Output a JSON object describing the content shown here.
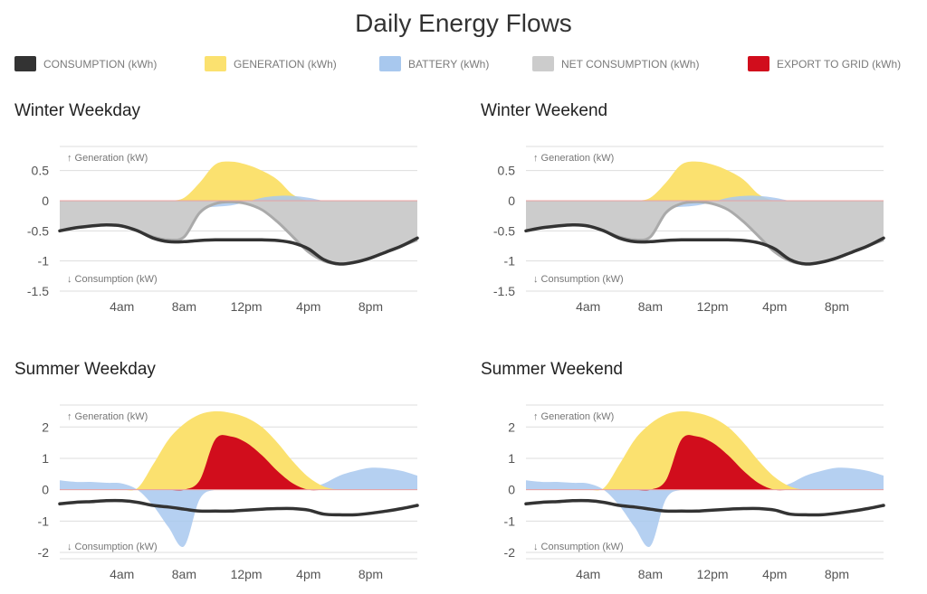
{
  "title": "Daily Energy Flows",
  "legend": [
    {
      "label": "CONSUMPTION (kWh)",
      "color": "#333333"
    },
    {
      "label": "GENERATION (kWh)",
      "color": "#fbe16f"
    },
    {
      "label": "BATTERY (kWh)",
      "color": "#a8c8ee"
    },
    {
      "label": "NET CONSUMPTION (kWh)",
      "color": "#cccccc"
    },
    {
      "label": "EXPORT TO GRID (kWh)",
      "color": "#d10d1c"
    }
  ],
  "colors": {
    "consumption": "#333333",
    "generation": "#fbe16f",
    "battery": "#a8c8ee",
    "net": "#cccccc",
    "export": "#d10d1c",
    "grid": "#dddddd",
    "zero": "#e9a1a1"
  },
  "chart_data": [
    {
      "title": "Winter Weekday",
      "type": "area",
      "gen_label": "↑ Generation (kW)",
      "cons_label": "↓ Consumption (kW)",
      "xticks": [
        "4am",
        "8am",
        "12pm",
        "4pm",
        "8pm"
      ],
      "yticks": [
        "0.5",
        "0",
        "-0.5",
        "-1",
        "-1.5"
      ],
      "ytick_values": [
        0.5,
        0,
        -0.5,
        -1,
        -1.5
      ],
      "ylim": [
        -1.5,
        0.9
      ],
      "xlim": [
        0,
        23
      ],
      "x": [
        0,
        1,
        2,
        3,
        4,
        5,
        6,
        7,
        8,
        9,
        10,
        11,
        12,
        13,
        14,
        15,
        16,
        17,
        18,
        19,
        20,
        21,
        22,
        23
      ],
      "series": [
        {
          "key": "generation",
          "kind": "area",
          "values": [
            0,
            0,
            0,
            0,
            0,
            0,
            0,
            0,
            0.05,
            0.3,
            0.6,
            0.65,
            0.6,
            0.5,
            0.35,
            0.1,
            0,
            0,
            0,
            0,
            0,
            0,
            0,
            0
          ]
        },
        {
          "key": "battery",
          "kind": "area",
          "values": [
            0,
            0,
            0,
            0,
            0,
            0,
            0,
            0,
            0,
            -0.1,
            -0.1,
            -0.08,
            -0.02,
            0.05,
            0.08,
            0.08,
            0.05,
            0,
            0,
            0,
            0,
            0,
            0,
            0
          ]
        },
        {
          "key": "net",
          "kind": "area",
          "values": [
            -0.5,
            -0.45,
            -0.42,
            -0.4,
            -0.42,
            -0.5,
            -0.6,
            -0.65,
            -0.6,
            -0.2,
            -0.05,
            -0.02,
            -0.05,
            -0.15,
            -0.35,
            -0.6,
            -0.85,
            -1.0,
            -1.05,
            -1.02,
            -0.95,
            -0.85,
            -0.75,
            -0.65
          ]
        },
        {
          "key": "consumption",
          "kind": "line",
          "values": [
            -0.5,
            -0.45,
            -0.42,
            -0.4,
            -0.42,
            -0.5,
            -0.62,
            -0.68,
            -0.68,
            -0.66,
            -0.65,
            -0.65,
            -0.65,
            -0.65,
            -0.66,
            -0.7,
            -0.8,
            -0.98,
            -1.05,
            -1.02,
            -0.95,
            -0.85,
            -0.75,
            -0.62
          ]
        }
      ]
    },
    {
      "title": "Winter Weekend",
      "type": "area",
      "gen_label": "↑ Generation (kW)",
      "cons_label": "↓ Consumption (kW)",
      "xticks": [
        "4am",
        "8am",
        "12pm",
        "4pm",
        "8pm"
      ],
      "yticks": [
        "0.5",
        "0",
        "-0.5",
        "-1",
        "-1.5"
      ],
      "ytick_values": [
        0.5,
        0,
        -0.5,
        -1,
        -1.5
      ],
      "ylim": [
        -1.5,
        0.9
      ],
      "xlim": [
        0,
        23
      ],
      "x": [
        0,
        1,
        2,
        3,
        4,
        5,
        6,
        7,
        8,
        9,
        10,
        11,
        12,
        13,
        14,
        15,
        16,
        17,
        18,
        19,
        20,
        21,
        22,
        23
      ],
      "series": [
        {
          "key": "generation",
          "kind": "area",
          "values": [
            0,
            0,
            0,
            0,
            0,
            0,
            0,
            0,
            0.05,
            0.3,
            0.6,
            0.65,
            0.6,
            0.5,
            0.35,
            0.1,
            0,
            0,
            0,
            0,
            0,
            0,
            0,
            0
          ]
        },
        {
          "key": "battery",
          "kind": "area",
          "values": [
            0,
            0,
            0,
            0,
            0,
            0,
            0,
            0,
            0,
            -0.1,
            -0.1,
            -0.08,
            -0.02,
            0.05,
            0.08,
            0.08,
            0.05,
            0,
            0,
            0,
            0,
            0,
            0,
            0
          ]
        },
        {
          "key": "net",
          "kind": "area",
          "values": [
            -0.5,
            -0.45,
            -0.42,
            -0.4,
            -0.42,
            -0.5,
            -0.6,
            -0.65,
            -0.6,
            -0.2,
            -0.05,
            -0.02,
            -0.05,
            -0.15,
            -0.35,
            -0.6,
            -0.85,
            -1.0,
            -1.05,
            -1.02,
            -0.95,
            -0.85,
            -0.75,
            -0.65
          ]
        },
        {
          "key": "consumption",
          "kind": "line",
          "values": [
            -0.5,
            -0.45,
            -0.42,
            -0.4,
            -0.42,
            -0.5,
            -0.62,
            -0.68,
            -0.68,
            -0.66,
            -0.65,
            -0.65,
            -0.65,
            -0.65,
            -0.66,
            -0.7,
            -0.8,
            -0.98,
            -1.05,
            -1.02,
            -0.95,
            -0.85,
            -0.75,
            -0.62
          ]
        }
      ]
    },
    {
      "title": "Summer Weekday",
      "type": "area",
      "gen_label": "↑ Generation (kW)",
      "cons_label": "↓ Consumption (kW)",
      "xticks": [
        "4am",
        "8am",
        "12pm",
        "4pm",
        "8pm"
      ],
      "yticks": [
        "2",
        "1",
        "0",
        "-1",
        "-2"
      ],
      "ytick_values": [
        2,
        1,
        0,
        -1,
        -2
      ],
      "ylim": [
        -2.2,
        2.7
      ],
      "xlim": [
        0,
        23
      ],
      "x": [
        0,
        1,
        2,
        3,
        4,
        5,
        6,
        7,
        8,
        9,
        10,
        11,
        12,
        13,
        14,
        15,
        16,
        17,
        18,
        19,
        20,
        21,
        22,
        23
      ],
      "series": [
        {
          "key": "battery",
          "kind": "area",
          "values": [
            0.3,
            0.25,
            0.25,
            0.22,
            0.2,
            0,
            -0.5,
            -1.2,
            -1.8,
            -0.3,
            0,
            0,
            0,
            0,
            0,
            0,
            0.05,
            0.2,
            0.45,
            0.6,
            0.7,
            0.68,
            0.6,
            0.45
          ]
        },
        {
          "key": "generation",
          "kind": "area",
          "values": [
            0,
            0,
            0,
            0,
            0,
            0.05,
            0.8,
            1.6,
            2.1,
            2.4,
            2.5,
            2.45,
            2.3,
            2.0,
            1.5,
            0.9,
            0.4,
            0.1,
            0,
            0,
            0,
            0,
            0,
            0
          ]
        },
        {
          "key": "export",
          "kind": "area",
          "values": [
            0,
            0,
            0,
            0,
            0,
            0,
            0,
            0,
            0,
            0.3,
            1.6,
            1.7,
            1.5,
            1.1,
            0.6,
            0.2,
            0,
            0,
            0,
            0,
            0,
            0,
            0,
            0
          ]
        },
        {
          "key": "consumption",
          "kind": "line",
          "values": [
            -0.45,
            -0.4,
            -0.38,
            -0.35,
            -0.35,
            -0.4,
            -0.5,
            -0.55,
            -0.62,
            -0.68,
            -0.68,
            -0.68,
            -0.65,
            -0.62,
            -0.6,
            -0.6,
            -0.65,
            -0.78,
            -0.8,
            -0.8,
            -0.75,
            -0.68,
            -0.6,
            -0.5
          ]
        }
      ]
    },
    {
      "title": "Summer Weekend",
      "type": "area",
      "gen_label": "↑ Generation (kW)",
      "cons_label": "↓ Consumption (kW)",
      "xticks": [
        "4am",
        "8am",
        "12pm",
        "4pm",
        "8pm"
      ],
      "yticks": [
        "2",
        "1",
        "0",
        "-1",
        "-2"
      ],
      "ytick_values": [
        2,
        1,
        0,
        -1,
        -2
      ],
      "ylim": [
        -2.2,
        2.7
      ],
      "xlim": [
        0,
        23
      ],
      "x": [
        0,
        1,
        2,
        3,
        4,
        5,
        6,
        7,
        8,
        9,
        10,
        11,
        12,
        13,
        14,
        15,
        16,
        17,
        18,
        19,
        20,
        21,
        22,
        23
      ],
      "series": [
        {
          "key": "battery",
          "kind": "area",
          "values": [
            0.3,
            0.25,
            0.25,
            0.22,
            0.2,
            0,
            -0.5,
            -1.2,
            -1.8,
            -0.3,
            0,
            0,
            0,
            0,
            0,
            0,
            0.05,
            0.2,
            0.45,
            0.6,
            0.7,
            0.68,
            0.6,
            0.45
          ]
        },
        {
          "key": "generation",
          "kind": "area",
          "values": [
            0,
            0,
            0,
            0,
            0,
            0.05,
            0.8,
            1.6,
            2.1,
            2.4,
            2.5,
            2.45,
            2.3,
            2.0,
            1.5,
            0.9,
            0.4,
            0.1,
            0,
            0,
            0,
            0,
            0,
            0
          ]
        },
        {
          "key": "export",
          "kind": "area",
          "values": [
            0,
            0,
            0,
            0,
            0,
            0,
            0,
            0,
            0,
            0.3,
            1.6,
            1.7,
            1.5,
            1.1,
            0.6,
            0.2,
            0,
            0,
            0,
            0,
            0,
            0,
            0,
            0
          ]
        },
        {
          "key": "consumption",
          "kind": "line",
          "values": [
            -0.45,
            -0.4,
            -0.38,
            -0.35,
            -0.35,
            -0.4,
            -0.5,
            -0.55,
            -0.62,
            -0.68,
            -0.68,
            -0.68,
            -0.65,
            -0.62,
            -0.6,
            -0.6,
            -0.65,
            -0.78,
            -0.8,
            -0.8,
            -0.75,
            -0.68,
            -0.6,
            -0.5
          ]
        }
      ]
    }
  ]
}
